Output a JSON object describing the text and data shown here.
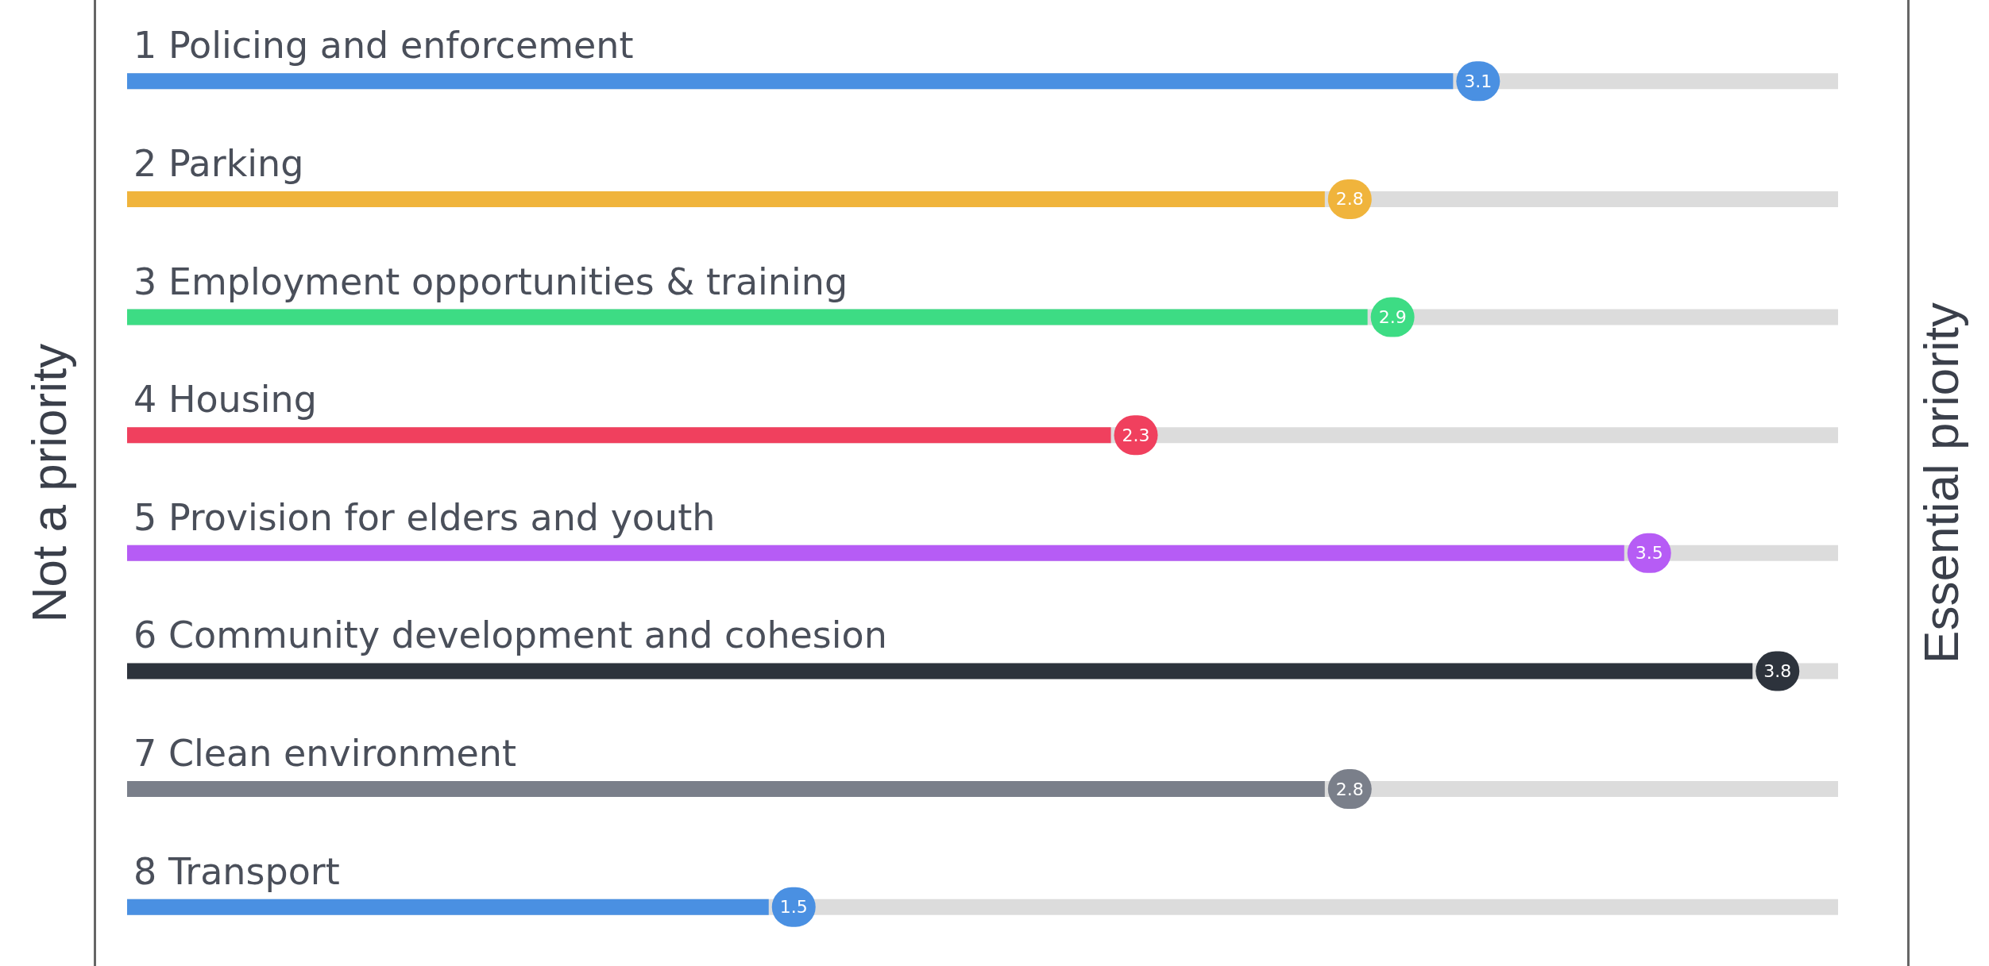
{
  "chart_data": {
    "type": "bar",
    "orientation": "horizontal",
    "categories": [
      "1 Policing and enforcement",
      "2 Parking",
      "3 Employment opportunities & training",
      "4 Housing",
      "5 Provision for elders and youth",
      "6 Community development and cohesion",
      "7 Clean environment",
      "8 Transport"
    ],
    "values": [
      3.1,
      2.8,
      2.9,
      2.3,
      3.5,
      3.8,
      2.8,
      1.5
    ],
    "colors": [
      "#4a90e2",
      "#f0b43c",
      "#3ddc84",
      "#f0405e",
      "#b65cf5",
      "#2d333c",
      "#7a7f8a",
      "#4a90e2"
    ],
    "tick_labels": "y",
    "data_labels": true,
    "grid": false,
    "annotations": [
      "Not a priority",
      "Essential priority"
    ]
  }
}
